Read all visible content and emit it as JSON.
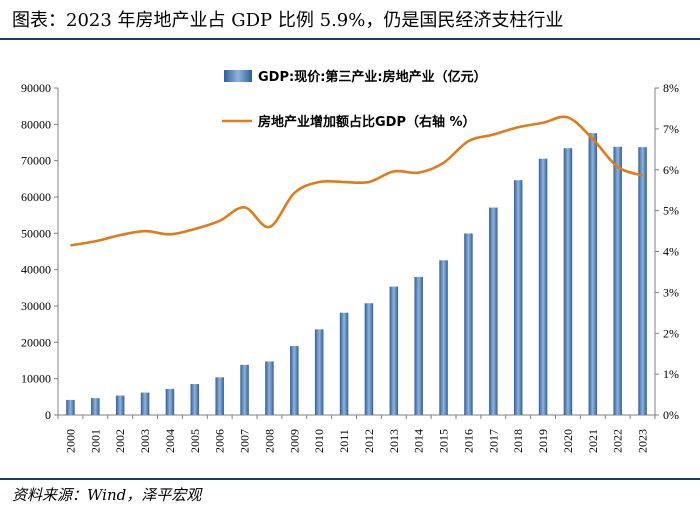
{
  "title": "图表：2023 年房地产业占 GDP 比例 5.9%，仍是国民经济支柱行业",
  "source": "资料来源：Wind，泽平宏观",
  "colors": {
    "bar": "#4f81bd",
    "line": "#e07b1a",
    "rule": "#1a3a6b"
  },
  "chart_data": {
    "type": "bar+line",
    "categories": [
      "2000",
      "2001",
      "2002",
      "2003",
      "2004",
      "2005",
      "2006",
      "2007",
      "2008",
      "2009",
      "2010",
      "2011",
      "2012",
      "2013",
      "2014",
      "2015",
      "2016",
      "2017",
      "2018",
      "2019",
      "2020",
      "2021",
      "2022",
      "2023"
    ],
    "series": [
      {
        "name": "GDP:现价:第三产业:房地产业（亿元）",
        "type": "bar",
        "axis": "left",
        "values": [
          4150,
          4630,
          5350,
          6170,
          7170,
          8520,
          10370,
          13810,
          14740,
          18970,
          23570,
          28160,
          30750,
          35330,
          38010,
          42570,
          49970,
          57090,
          64620,
          70540,
          73430,
          77560,
          73820,
          73720
        ]
      },
      {
        "name": "房地产业增加额占比GDP（右轴 %）",
        "type": "line",
        "axis": "right",
        "values": [
          4.15,
          4.25,
          4.4,
          4.5,
          4.42,
          4.55,
          4.75,
          5.08,
          4.6,
          5.43,
          5.7,
          5.7,
          5.7,
          5.96,
          5.93,
          6.17,
          6.7,
          6.86,
          7.04,
          7.15,
          7.28,
          6.75,
          6.07,
          5.86
        ]
      }
    ],
    "left_axis": {
      "min": 0,
      "max": 90000,
      "ticks": [
        "0",
        "10000",
        "20000",
        "30000",
        "40000",
        "50000",
        "60000",
        "70000",
        "80000",
        "90000"
      ]
    },
    "right_axis": {
      "min": 0,
      "max": 8,
      "ticks": [
        "0%",
        "1%",
        "2%",
        "3%",
        "4%",
        "5%",
        "6%",
        "7%",
        "8%"
      ]
    },
    "legend": [
      "GDP:现价:第三产业:房地产业（亿元）",
      "房地产业增加额占比GDP（右轴 %）"
    ]
  }
}
